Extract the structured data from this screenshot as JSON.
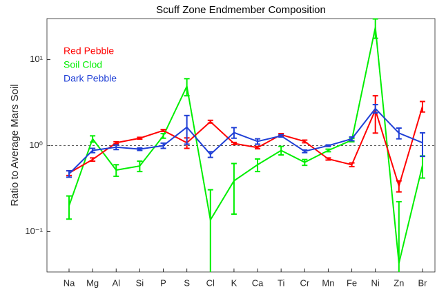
{
  "chart_data": {
    "type": "line",
    "title": "Scuff Zone Endmember Composition",
    "y_label": "Ratio to Average Mars Soil",
    "categories": [
      "Na",
      "Mg",
      "Al",
      "Si",
      "P",
      "S",
      "Cl",
      "K",
      "Ca",
      "Ti",
      "Cr",
      "Mn",
      "Fe",
      "Ni",
      "Zn",
      "Br"
    ],
    "series": [
      {
        "name": "Red Pebble",
        "color": "#ff0000",
        "values": [
          0.48,
          0.69,
          1.08,
          1.22,
          1.5,
          1.08,
          1.9,
          1.06,
          0.95,
          1.34,
          1.12,
          0.7,
          0.6,
          2.6,
          0.34,
          2.86
        ],
        "errors": [
          0.03,
          0.03,
          0.03,
          0.03,
          0.04,
          0.15,
          0.07,
          0.03,
          0.03,
          0.04,
          0.04,
          0.02,
          0.03,
          1.2,
          0.05,
          0.4
        ]
      },
      {
        "name": "Soil Clod",
        "color": "#00ee00",
        "values": [
          0.2,
          1.2,
          0.52,
          0.58,
          1.3,
          4.9,
          0.137,
          0.39,
          0.6,
          0.88,
          0.64,
          0.88,
          1.16,
          23.7,
          0.043,
          0.59
        ],
        "errors": [
          0.06,
          0.1,
          0.08,
          0.08,
          0.08,
          1.1,
          0.17,
          0.23,
          0.1,
          0.1,
          0.05,
          0.03,
          0.05,
          6,
          0.18,
          0.17
        ]
      },
      {
        "name": "Dark Pebble",
        "color": "#1f3fd6",
        "values": [
          0.47,
          0.88,
          0.96,
          0.91,
          1.0,
          1.64,
          0.79,
          1.42,
          1.12,
          1.3,
          0.86,
          1.0,
          1.2,
          2.7,
          1.4,
          1.08
        ],
        "errors": [
          0.04,
          0.05,
          0.06,
          0.03,
          0.07,
          0.6,
          0.06,
          0.2,
          0.08,
          0.04,
          0.03,
          0.02,
          0.06,
          0.3,
          0.2,
          0.33
        ]
      }
    ],
    "log_y": true,
    "ylim": [
      0.034,
      30
    ],
    "yticks": [
      {
        "value": 0.1,
        "label": "10⁻¹"
      },
      {
        "value": 1,
        "label": "10⁰"
      },
      {
        "value": 10,
        "label": "10¹"
      }
    ],
    "reference_line": 1,
    "legend": "upper left"
  }
}
